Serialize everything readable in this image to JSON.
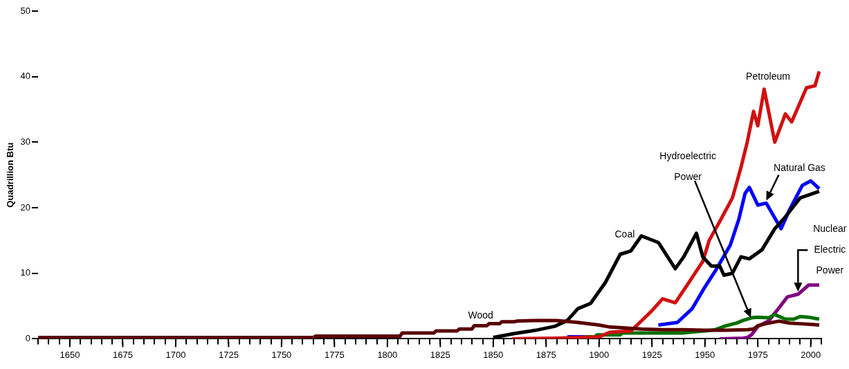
{
  "chart_data": {
    "type": "line",
    "ylabel": "Quadrillion Btu",
    "xlim": [
      1635,
      2005
    ],
    "ylim": [
      0,
      50
    ],
    "xticks": [
      {
        "value": 1635,
        "label": null
      },
      {
        "value": 1640,
        "label": null
      },
      {
        "value": 1645,
        "label": null
      },
      1650,
      {
        "value": 1655,
        "label": null
      },
      {
        "value": 1660,
        "label": null
      },
      {
        "value": 1665,
        "label": null
      },
      {
        "value": 1670,
        "label": null
      },
      1675,
      {
        "value": 1680,
        "label": null
      },
      {
        "value": 1685,
        "label": null
      },
      {
        "value": 1690,
        "label": null
      },
      {
        "value": 1695,
        "label": null
      },
      1700,
      {
        "value": 1705,
        "label": null
      },
      {
        "value": 1710,
        "label": null
      },
      {
        "value": 1715,
        "label": null
      },
      {
        "value": 1720,
        "label": null
      },
      1725,
      {
        "value": 1730,
        "label": null
      },
      {
        "value": 1735,
        "label": null
      },
      {
        "value": 1740,
        "label": null
      },
      {
        "value": 1745,
        "label": null
      },
      1750,
      {
        "value": 1755,
        "label": null
      },
      {
        "value": 1760,
        "label": null
      },
      {
        "value": 1765,
        "label": null
      },
      {
        "value": 1770,
        "label": null
      },
      1775,
      {
        "value": 1780,
        "label": null
      },
      {
        "value": 1785,
        "label": null
      },
      {
        "value": 1790,
        "label": null
      },
      {
        "value": 1795,
        "label": null
      },
      1800,
      {
        "value": 1805,
        "label": null
      },
      {
        "value": 1810,
        "label": null
      },
      {
        "value": 1815,
        "label": null
      },
      {
        "value": 1820,
        "label": null
      },
      1825,
      {
        "value": 1830,
        "label": null
      },
      {
        "value": 1835,
        "label": null
      },
      {
        "value": 1840,
        "label": null
      },
      {
        "value": 1845,
        "label": null
      },
      1850,
      {
        "value": 1855,
        "label": null
      },
      {
        "value": 1860,
        "label": null
      },
      {
        "value": 1865,
        "label": null
      },
      {
        "value": 1870,
        "label": null
      },
      1875,
      {
        "value": 1880,
        "label": null
      },
      {
        "value": 1885,
        "label": null
      },
      {
        "value": 1890,
        "label": null
      },
      {
        "value": 1895,
        "label": null
      },
      1900,
      {
        "value": 1905,
        "label": null
      },
      {
        "value": 1910,
        "label": null
      },
      {
        "value": 1915,
        "label": null
      },
      {
        "value": 1920,
        "label": null
      },
      1925,
      {
        "value": 1930,
        "label": null
      },
      {
        "value": 1935,
        "label": null
      },
      {
        "value": 1940,
        "label": null
      },
      {
        "value": 1945,
        "label": null
      },
      1950,
      {
        "value": 1955,
        "label": null
      },
      {
        "value": 1960,
        "label": null
      },
      {
        "value": 1965,
        "label": null
      },
      {
        "value": 1970,
        "label": null
      },
      1975,
      {
        "value": 1980,
        "label": null
      },
      {
        "value": 1985,
        "label": null
      },
      {
        "value": 1990,
        "label": null
      },
      {
        "value": 1995,
        "label": null
      },
      2000,
      {
        "value": 2005,
        "label": null
      }
    ],
    "yticks": [
      0,
      10,
      20,
      30,
      40,
      50
    ],
    "grid": false,
    "legend": false,
    "marker": "none",
    "line_style": "solid",
    "series": [
      {
        "color": "#5a0000",
        "x": [
          1635,
          1765,
          1766,
          1806,
          1807,
          1822,
          1823,
          1833,
          1834,
          1840,
          1841,
          1847,
          1848,
          1853,
          1854,
          1860,
          1861,
          1870,
          1880,
          1890,
          1900,
          1905,
          1910,
          1920,
          1930,
          1940,
          1950,
          1960,
          1970,
          1973,
          1975,
          1980,
          1985,
          1990,
          1995,
          2000,
          2004
        ],
        "values": [
          0.2,
          0.2,
          0.4,
          0.4,
          0.9,
          0.9,
          1.2,
          1.2,
          1.5,
          1.5,
          2.0,
          2.0,
          2.3,
          2.3,
          2.6,
          2.6,
          2.7,
          2.8,
          2.8,
          2.5,
          2.1,
          1.8,
          1.7,
          1.5,
          1.4,
          1.4,
          1.3,
          1.3,
          1.4,
          1.5,
          2.0,
          2.4,
          2.7,
          2.4,
          2.3,
          2.2,
          2.1
        ]
      },
      {
        "color": "#000000",
        "x": [
          1850,
          1860,
          1870,
          1879,
          1885,
          1890,
          1896,
          1903,
          1910,
          1915,
          1920,
          1928,
          1936,
          1940,
          1946,
          1949,
          1953,
          1957,
          1959,
          1963,
          1967,
          1971,
          1977,
          1983,
          1988,
          1995,
          2004
        ],
        "values": [
          0.2,
          0.8,
          1.3,
          1.9,
          2.8,
          4.6,
          5.4,
          8.6,
          12.9,
          13.4,
          15.7,
          14.7,
          10.7,
          12.5,
          16.1,
          12.5,
          11.1,
          11.1,
          9.7,
          10.0,
          12.5,
          12.2,
          13.6,
          16.8,
          18.6,
          21.5,
          22.5
        ]
      },
      {
        "color": "#d01010",
        "x": [
          1859,
          1880,
          1900,
          1905,
          1910,
          1915,
          1918,
          1925,
          1930,
          1936,
          1941,
          1949,
          1952,
          1957,
          1963,
          1967,
          1970,
          1973,
          1975,
          1978,
          1983,
          1988,
          1991,
          1998,
          2002,
          2004
        ],
        "values": [
          0,
          0.1,
          0.3,
          1.0,
          1.1,
          1.2,
          2.1,
          4.3,
          6.1,
          5.5,
          7.9,
          11.8,
          15.0,
          17.9,
          21.5,
          26.1,
          30.0,
          34.7,
          32.5,
          38.1,
          30.0,
          34.3,
          33.1,
          38.3,
          38.6,
          40.8
        ]
      },
      {
        "color": "#0000ff",
        "x": [
          1885,
          1893,
          1900,
          1928,
          1937,
          1944,
          1950,
          1955,
          1962,
          1966,
          1969,
          1971,
          1975,
          1979,
          1984,
          1986,
          1990,
          1996,
          2000,
          2004
        ],
        "values": [
          0.3,
          0.3,
          null,
          2.1,
          2.5,
          4.6,
          7.9,
          10.4,
          14.3,
          18.2,
          22.2,
          23.1,
          20.4,
          20.7,
          17.9,
          16.8,
          19.7,
          23.4,
          24.1,
          22.9
        ]
      },
      {
        "color": "#007000",
        "x": [
          1890,
          1898,
          1899,
          1910,
          1911,
          1935,
          1940,
          1950,
          1955,
          1960,
          1965,
          1968,
          1972,
          1975,
          1980,
          1983,
          1988,
          1992,
          1995,
          1999,
          2004
        ],
        "values": [
          0.3,
          0.3,
          0.6,
          0.6,
          0.9,
          0.9,
          0.9,
          1.2,
          1.4,
          2.0,
          2.4,
          2.8,
          3.2,
          3.3,
          3.2,
          3.7,
          3.0,
          3.0,
          3.4,
          3.3,
          3.0
        ]
      },
      {
        "color": "#800080",
        "x": [
          1957,
          1968,
          1970,
          1972,
          1975,
          1980,
          1984,
          1989,
          1994,
          1999,
          2004
        ],
        "values": [
          0,
          0.1,
          0.2,
          0.6,
          1.9,
          2.7,
          4.3,
          6.4,
          6.8,
          8.2,
          8.2
        ]
      }
    ],
    "annotations": [
      "Petroleum",
      {
        "text": "Natural Gas",
        "x": 1979,
        "y": 21.1
      },
      "Hydroelectric Power",
      "Coal",
      "Wood",
      {
        "text": "Nuclear Electric Power",
        "x": 1994,
        "y": 7.2
      }
    ]
  }
}
